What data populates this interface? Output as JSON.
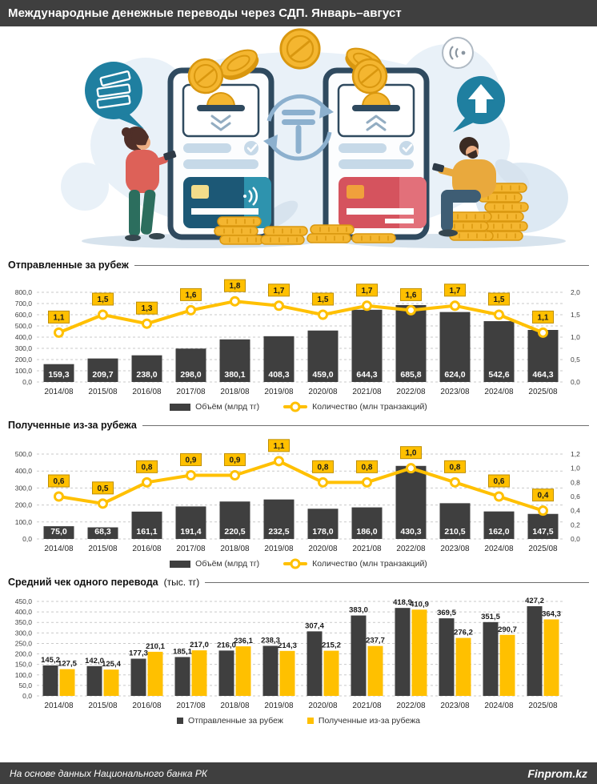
{
  "header": {
    "title": "Международные денежные переводы через СДП. Январь–август"
  },
  "illustration": {
    "tenge_symbol": "₸",
    "icons": [
      "coin-icon",
      "tenge-exchange-icon",
      "contactless-icon",
      "cash-bubble-icon",
      "up-arrow-bubble-icon",
      "phone-icon",
      "bank-card-icon"
    ]
  },
  "colors": {
    "bar_dark": "#3F3F3F",
    "accent_yellow": "#FFC000",
    "label_box_border": "#BF8F00",
    "grid": "#C9C9C9",
    "header_bg": "#3F3F3F",
    "marker_fill": "#FFFFFF"
  },
  "chart_data": [
    {
      "type": "bar+line",
      "title": "Отправленные за рубеж",
      "categories": [
        "2014/08",
        "2015/08",
        "2016/08",
        "2017/08",
        "2018/08",
        "2019/08",
        "2020/08",
        "2021/08",
        "2022/08",
        "2023/08",
        "2024/08",
        "2025/08"
      ],
      "series": [
        {
          "name": "Объём (млрд тг)",
          "type": "bar",
          "color": "#3F3F3F",
          "values": [
            159.3,
            209.7,
            238.0,
            298.0,
            380.1,
            408.3,
            459.0,
            644.3,
            685.8,
            624.0,
            542.6,
            464.3
          ]
        },
        {
          "name": "Количество (млн транзакций)",
          "type": "line",
          "color": "#FFC000",
          "values": [
            1.1,
            1.5,
            1.3,
            1.6,
            1.8,
            1.7,
            1.5,
            1.7,
            1.6,
            1.7,
            1.5,
            1.1
          ]
        }
      ],
      "left_axis": {
        "min": 0,
        "max": 800,
        "step": 100
      },
      "right_axis": {
        "min": 0,
        "max": 2.0,
        "step": 0.5
      },
      "grid": true,
      "legend_position": "bottom"
    },
    {
      "type": "bar+line",
      "title": "Полученные из-за рубежа",
      "categories": [
        "2014/08",
        "2015/08",
        "2016/08",
        "2017/08",
        "2018/08",
        "2019/08",
        "2020/08",
        "2021/08",
        "2022/08",
        "2023/08",
        "2024/08",
        "2025/08"
      ],
      "series": [
        {
          "name": "Объём (млрд тг)",
          "type": "bar",
          "color": "#3F3F3F",
          "values": [
            75.0,
            68.3,
            161.1,
            191.4,
            220.5,
            232.5,
            178.0,
            186.0,
            430.3,
            210.5,
            162.0,
            147.5
          ]
        },
        {
          "name": "Количество (млн транзакций)",
          "type": "line",
          "color": "#FFC000",
          "values": [
            0.6,
            0.5,
            0.8,
            0.9,
            0.9,
            1.1,
            0.8,
            0.8,
            1.0,
            0.8,
            0.6,
            0.4
          ]
        }
      ],
      "left_axis": {
        "min": 0,
        "max": 500,
        "step": 100
      },
      "right_axis": {
        "min": 0,
        "max": 1.2,
        "step": 0.2
      },
      "grid": true,
      "legend_position": "bottom"
    },
    {
      "type": "bar",
      "title": "Средний чек одного перевода",
      "title_suffix": "(тыс. тг)",
      "categories": [
        "2014/08",
        "2015/08",
        "2016/08",
        "2017/08",
        "2018/08",
        "2019/08",
        "2020/08",
        "2021/08",
        "2022/08",
        "2023/08",
        "2024/08",
        "2025/08"
      ],
      "series": [
        {
          "name": "Отправленные за рубеж",
          "color": "#3F3F3F",
          "values": [
            145.2,
            142.0,
            177.3,
            185.1,
            216.0,
            238.3,
            307.4,
            383.0,
            418.9,
            369.5,
            351.5,
            427.2
          ]
        },
        {
          "name": "Полученные из-за рубежа",
          "color": "#FFC000",
          "values": [
            127.5,
            125.4,
            210.1,
            217.0,
            236.1,
            214.3,
            215.2,
            237.7,
            410.9,
            276.2,
            290.7,
            364.3
          ]
        }
      ],
      "left_axis": {
        "min": 0,
        "max": 450,
        "step": 50
      },
      "grid": true,
      "legend_position": "bottom"
    }
  ],
  "footer": {
    "source": "На основе данных Национального банка РК",
    "brand": "Finprom.kz"
  }
}
